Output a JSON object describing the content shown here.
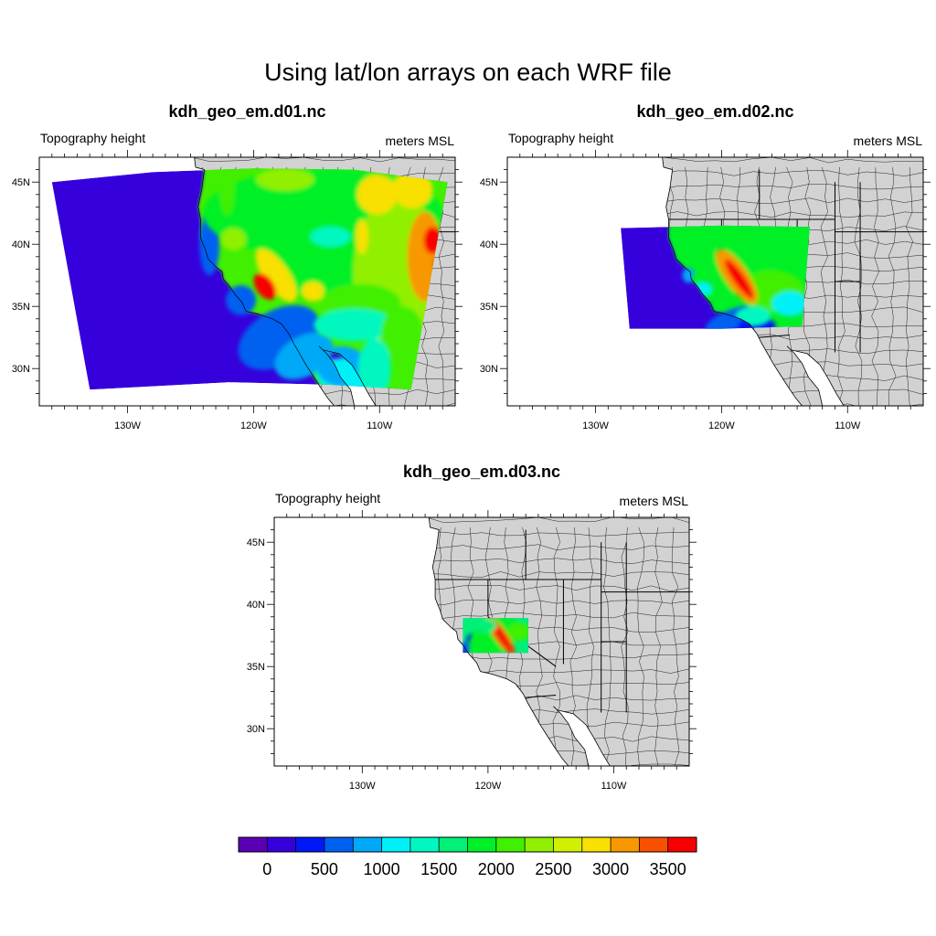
{
  "figure": {
    "title": "Using lat/lon arrays on each WRF file"
  },
  "panels": [
    {
      "title": "kdh_geo_em.d01.nc",
      "left_string": "Topography height",
      "right_string": "meters MSL",
      "lat_labels": [
        "45N",
        "40N",
        "35N",
        "30N"
      ],
      "lon_labels": [
        "130W",
        "120W",
        "110W"
      ],
      "domain_box": {
        "lon": [
          -136,
          -104.5
        ],
        "lat": [
          28.2,
          46
        ]
      }
    },
    {
      "title": "kdh_geo_em.d02.nc",
      "left_string": "Topography height",
      "right_string": "meters MSL",
      "lat_labels": [
        "45N",
        "40N",
        "35N",
        "30N"
      ],
      "lon_labels": [
        "130W",
        "120W",
        "110W"
      ],
      "domain_box": {
        "lon": [
          -128,
          -113
        ],
        "lat": [
          33.2,
          41.4
        ]
      }
    },
    {
      "title": "kdh_geo_em.d03.nc",
      "left_string": "Topography height",
      "right_string": "meters MSL",
      "lat_labels": [
        "45N",
        "40N",
        "35N",
        "30N"
      ],
      "lon_labels": [
        "130W",
        "120W",
        "110W"
      ],
      "domain_box": {
        "lon": [
          -122,
          -116.8
        ],
        "lat": [
          36.1,
          38.9
        ]
      }
    }
  ],
  "colorbar": {
    "labels": [
      "0",
      "500",
      "1000",
      "1500",
      "2000",
      "2500",
      "3000",
      "3500"
    ],
    "colors": [
      "#5a00b4",
      "#3500dc",
      "#0018f8",
      "#0060f0",
      "#00a8f8",
      "#00f0f8",
      "#00f8c0",
      "#00f078",
      "#00f028",
      "#40f000",
      "#90f000",
      "#d0f000",
      "#f8e000",
      "#f89800",
      "#f85000",
      "#f80000"
    ]
  },
  "chart_data": {
    "type": "heatmap",
    "title": "Using lat/lon arrays on each WRF file",
    "variable": "Topography height",
    "units": "meters MSL",
    "x_axis": {
      "ticks": [
        "130W",
        "120W",
        "110W"
      ],
      "range": [
        -137,
        -104
      ]
    },
    "y_axis": {
      "ticks": [
        "30N",
        "35N",
        "40N",
        "45N"
      ],
      "range": [
        27,
        47
      ]
    },
    "levels": [
      -250,
      0,
      250,
      500,
      750,
      1000,
      1250,
      1500,
      1750,
      2000,
      2250,
      2500,
      2750,
      3000,
      3250,
      3500,
      3750
    ],
    "panels": [
      "kdh_geo_em.d01.nc",
      "kdh_geo_em.d02.nc",
      "kdh_geo_em.d03.nc"
    ]
  }
}
